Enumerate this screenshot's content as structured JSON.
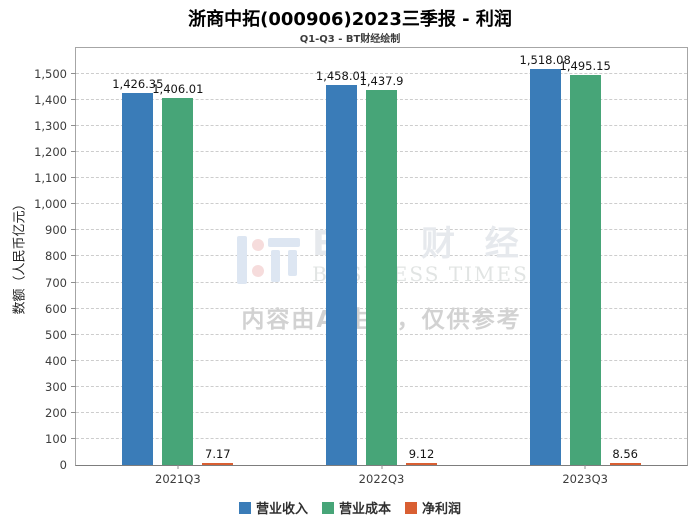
{
  "header": {
    "title": "浙商中拓(000906)2023三季报 - 利润",
    "subtitle": "Q1-Q3 - BT财经绘制"
  },
  "chart_data": {
    "type": "bar",
    "title": "浙商中拓(000906)2023三季报 - 利润",
    "subtitle": "Q1-Q3 - BT财经绘制",
    "categories": [
      "2021Q3",
      "2022Q3",
      "2023Q3"
    ],
    "series": [
      {
        "key": "revenue",
        "name": "营业收入",
        "color": "#3a7cb8",
        "values": [
          1426.35,
          1458.01,
          1518.08
        ],
        "labels": [
          "1,426.35",
          "1,458.01",
          "1,518.08"
        ]
      },
      {
        "key": "operating-cost",
        "name": "营业成本",
        "color": "#47a578",
        "values": [
          1406.01,
          1437.9,
          1495.15
        ],
        "labels": [
          "1,406.01",
          "1,437.9",
          "1,495.15"
        ]
      },
      {
        "key": "net-profit",
        "name": "净利润",
        "color": "#d95f32",
        "values": [
          7.17,
          9.12,
          8.56
        ],
        "labels": [
          "7.17",
          "9.12",
          "8.56"
        ]
      }
    ],
    "xlabel": "",
    "ylabel": "数额（人民币亿元）",
    "ylim": [
      0,
      1607
    ],
    "ytick_step": 100,
    "ytick_max_label": 1500,
    "grid": "horizontal-dashed",
    "legend_position": "bottom"
  },
  "watermark": {
    "brand_cn": "B T 财 经",
    "brand_en": "BUSINESS TIMES",
    "disclaimer": "内容由AI生成，仅供参考"
  }
}
